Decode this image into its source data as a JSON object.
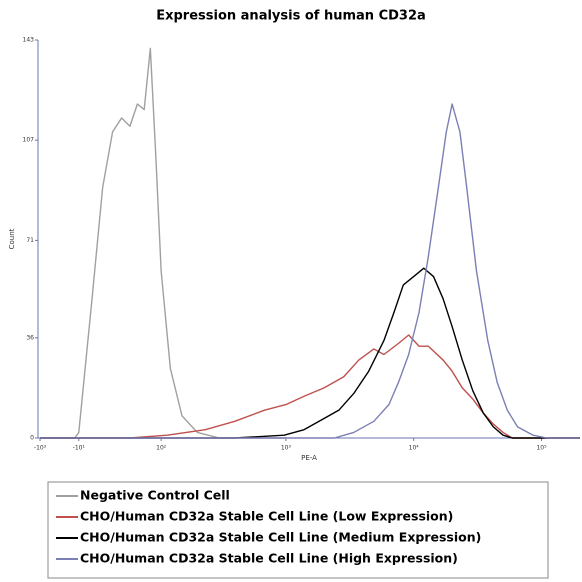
{
  "chart_data": {
    "type": "line",
    "title": "Expression analysis of human CD32a",
    "xlabel": "PE-A",
    "ylabel": "Count",
    "xscale": "biex",
    "xlim": [
      -1200,
      200000
    ],
    "ylim": [
      0,
      143
    ],
    "xticks": [
      {
        "value": -1000,
        "label": "-10³"
      },
      {
        "value": -10,
        "label": "-10¹"
      },
      {
        "value": 100,
        "label": "10²"
      },
      {
        "value": 1000,
        "label": "10³"
      },
      {
        "value": 10000,
        "label": "10⁴"
      },
      {
        "value": 100000,
        "label": "10⁵"
      }
    ],
    "yticks": [
      0,
      36,
      71,
      107,
      143
    ],
    "series": [
      {
        "name": "Negative Control Cell",
        "color": "#a0a0a0",
        "x": [
          -1000,
          -100,
          -30,
          -10,
          0,
          10,
          20,
          30,
          40,
          50,
          60,
          70,
          80,
          90,
          100,
          120,
          150,
          200,
          300,
          1000
        ],
        "values": [
          0,
          0,
          0,
          2,
          10,
          50,
          90,
          110,
          115,
          112,
          120,
          118,
          140,
          100,
          60,
          25,
          8,
          2,
          0,
          0
        ]
      },
      {
        "name": "CHO/Human CD32a Stable Cell Line (Low Expression)",
        "color": "#c0504d",
        "x": [
          -1000,
          50,
          113,
          232,
          397,
          680,
          1000,
          1390,
          1990,
          2840,
          3720,
          4880,
          5850,
          7610,
          9140,
          11000,
          13000,
          17000,
          20000,
          24000,
          29000,
          35000,
          42000,
          50000,
          59000,
          200000
        ],
        "values": [
          0,
          0,
          1,
          3,
          6,
          10,
          12,
          15,
          18,
          22,
          28,
          32,
          30,
          34,
          37,
          33,
          33,
          28,
          24,
          18,
          14,
          9,
          5,
          2,
          0,
          0
        ]
      },
      {
        "name": "CHO/Human CD32a Stable Cell Line (Medium Expression)",
        "color": "#000000",
        "x": [
          -1000,
          397,
          970,
          1390,
          1990,
          2600,
          3400,
          4450,
          5850,
          7000,
          8300,
          10000,
          12000,
          14300,
          17000,
          20000,
          24000,
          29000,
          35000,
          42000,
          50000,
          59000,
          200000
        ],
        "values": [
          0,
          0,
          1,
          3,
          7,
          10,
          16,
          24,
          35,
          45,
          55,
          58,
          61,
          58,
          50,
          40,
          28,
          17,
          9,
          4,
          1,
          0,
          0
        ]
      },
      {
        "name": "CHO/Human CD32a Stable Cell Line (High Expression)",
        "color": "#7b7fb5",
        "x": [
          -1000,
          2400,
          3400,
          4880,
          6400,
          7610,
          9140,
          11000,
          13000,
          15600,
          18000,
          20000,
          23000,
          26000,
          31000,
          38000,
          45000,
          54000,
          65000,
          86000,
          110000,
          200000
        ],
        "values": [
          0,
          0,
          2,
          6,
          12,
          20,
          30,
          45,
          65,
          90,
          110,
          120,
          110,
          90,
          60,
          35,
          20,
          10,
          4,
          1,
          0,
          0
        ]
      }
    ]
  }
}
